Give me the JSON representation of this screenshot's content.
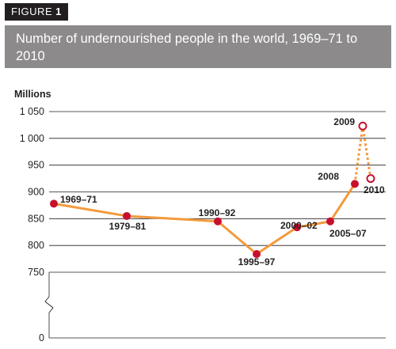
{
  "figure_tag": {
    "prefix": "FIGURE",
    "number": "1"
  },
  "colors": {
    "line": "#f39a3c",
    "point": "#c8102e",
    "title_band": "#8c8a8b",
    "tag_bg": "#231f20",
    "grid": "#231f20"
  },
  "chart_data": {
    "type": "line",
    "title": "Number of undernourished people in the world, 1969–71 to 2010",
    "ylabel": "Millions",
    "y_ticks": [
      "1 050",
      "1 000",
      "950",
      "900",
      "850",
      "800",
      "750",
      "0"
    ],
    "ylim": [
      750,
      1050
    ],
    "axis_break": true,
    "grid": "horizontal",
    "series": [
      {
        "style": "solid",
        "points": [
          {
            "x": "1969–71",
            "y": 878
          },
          {
            "x": "1979–81",
            "y": 855
          },
          {
            "x": "1990–92",
            "y": 845
          },
          {
            "x": "1995–97",
            "y": 784
          },
          {
            "x": "2000–02",
            "y": 834
          },
          {
            "x": "2005–07",
            "y": 845
          },
          {
            "x": "2008",
            "y": 915
          }
        ]
      },
      {
        "style": "dotted",
        "marker": "open",
        "points": [
          {
            "x": "2009",
            "y": 1023
          },
          {
            "x": "2010",
            "y": 925
          }
        ]
      }
    ]
  }
}
